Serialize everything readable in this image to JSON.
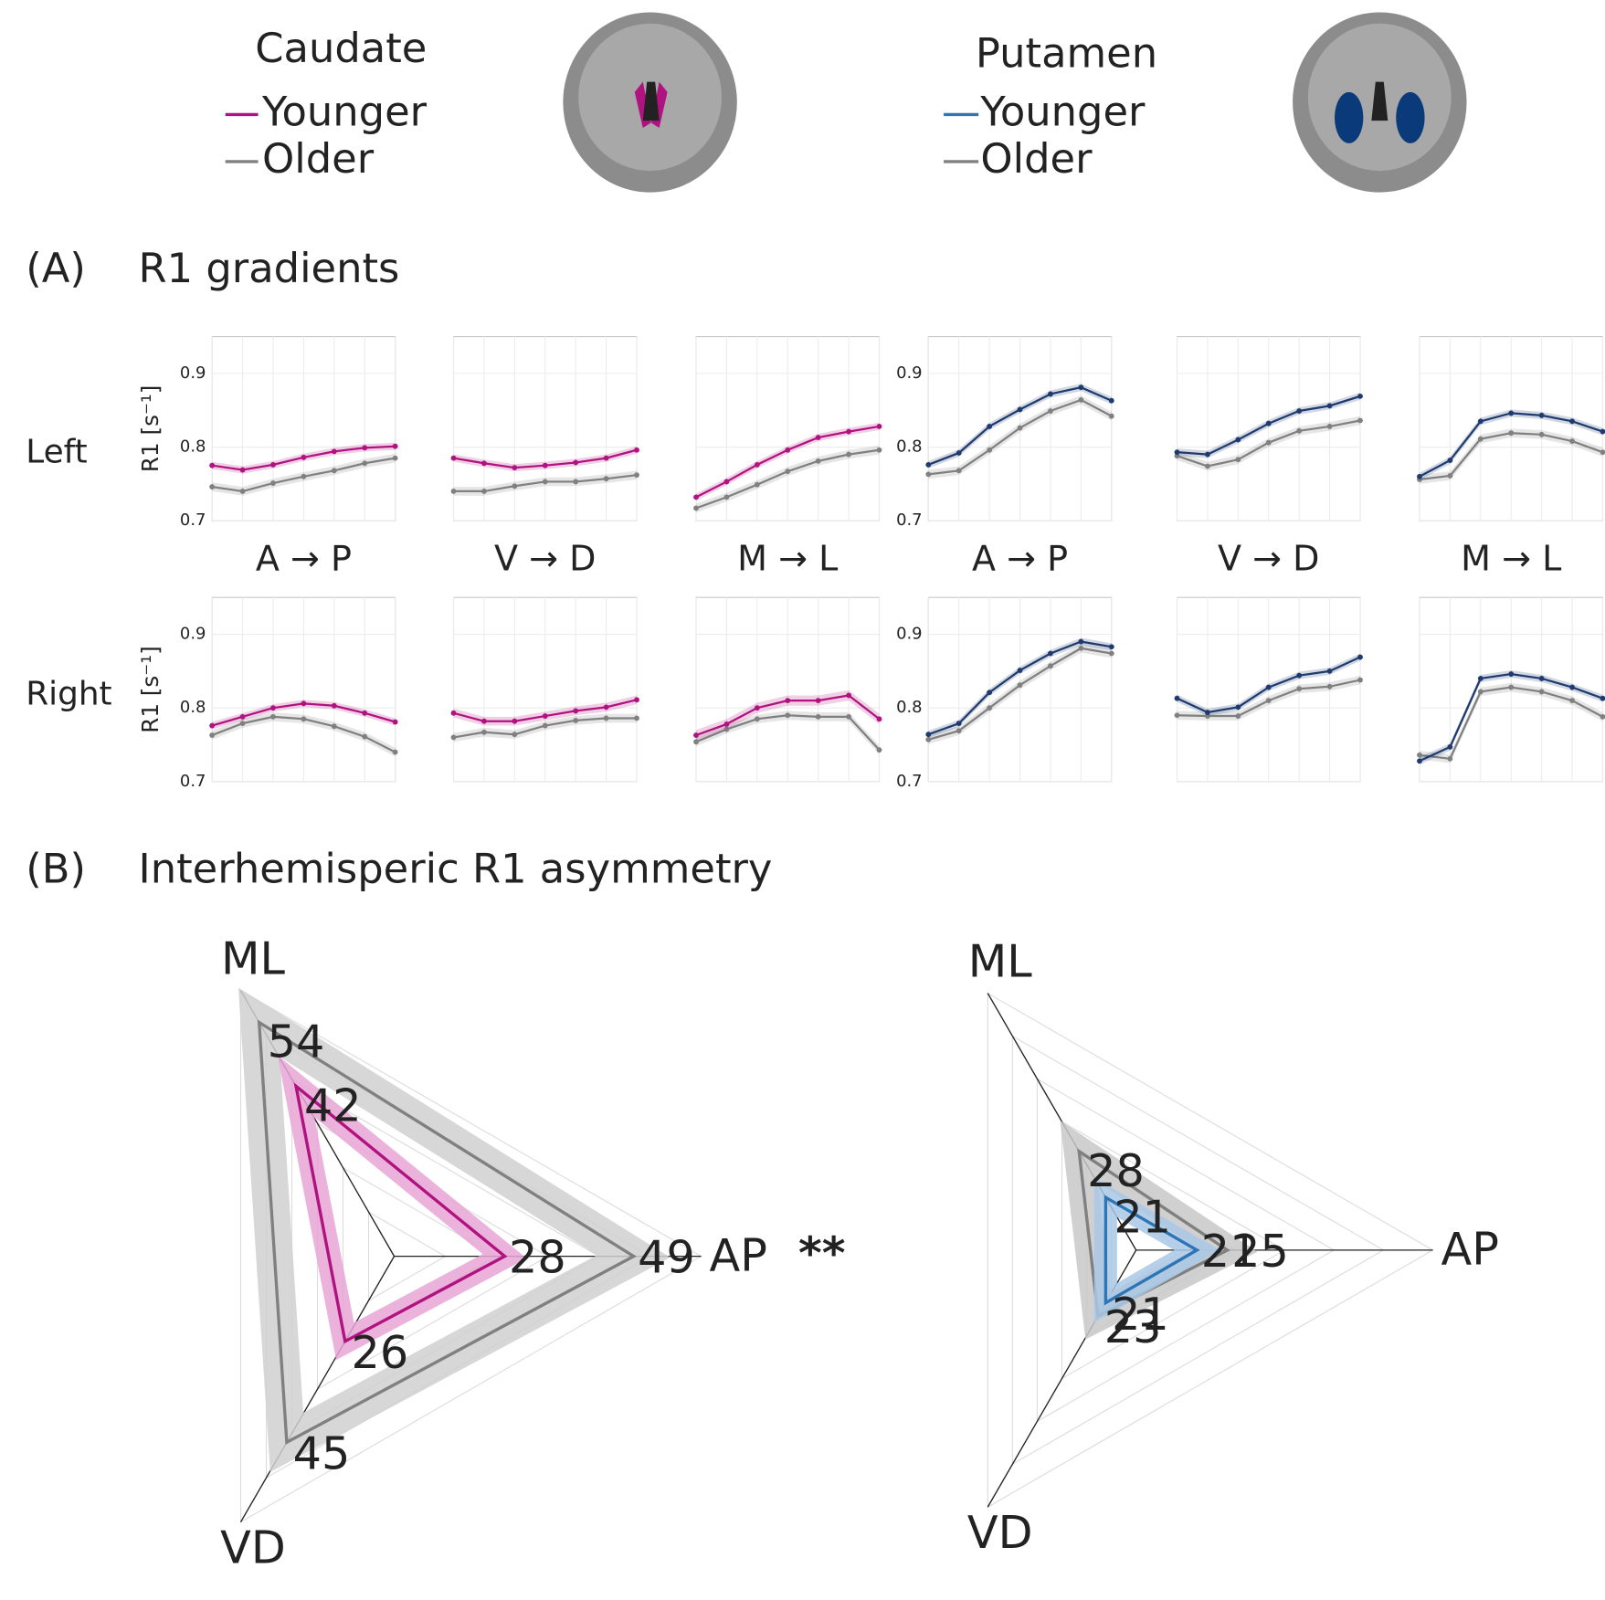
{
  "legends": [
    {
      "title": "Caudate",
      "color": "#d966c0"
    },
    {
      "title": "Putamen",
      "color": "#2f4f6f"
    }
  ],
  "panel_a": {
    "label": "(A)",
    "title": "R1 gradients"
  },
  "panel_b": {
    "label": "(B)",
    "title": "Interhemisperic R1 asymmetry"
  },
  "row_labels": [
    "Left",
    "Right"
  ],
  "chart_data": [
    {
      "type": "line",
      "xlabel": "A → P",
      "ylabel": "R1 [s⁻¹]",
      "categories": [
        null,
        null,
        null,
        null,
        null,
        null,
        null
      ],
      "ylim": [
        0.7,
        0.95
      ],
      "yticks": [
        0.7,
        0.8,
        0.9
      ],
      "series": [
        {
          "name": "Younger",
          "color": "#b0127f",
          "values": [
            0.775,
            0.769,
            0.776,
            0.786,
            0.794,
            0.799,
            0.801
          ],
          "error": 0.005
        },
        {
          "name": "Older",
          "color": "#808080",
          "values": [
            0.746,
            0.74,
            0.751,
            0.76,
            0.768,
            0.778,
            0.785
          ],
          "error": 0.006
        }
      ]
    },
    {
      "type": "line",
      "xlabel": "V → D",
      "categories": [
        null,
        null,
        null,
        null,
        null,
        null,
        null
      ],
      "ylim": [
        0.7,
        0.95
      ],
      "yticks": [
        0.7,
        0.8,
        0.9
      ],
      "series": [
        {
          "name": "Younger",
          "color": "#b0127f",
          "values": [
            0.785,
            0.778,
            0.772,
            0.775,
            0.779,
            0.785,
            0.796
          ],
          "error": 0.005
        },
        {
          "name": "Older",
          "color": "#808080",
          "values": [
            0.74,
            0.74,
            0.747,
            0.753,
            0.753,
            0.757,
            0.762
          ],
          "error": 0.006
        }
      ]
    },
    {
      "type": "line",
      "xlabel": "M → L",
      "categories": [
        null,
        null,
        null,
        null,
        null,
        null,
        null
      ],
      "ylim": [
        0.7,
        0.95
      ],
      "yticks": [
        0.7,
        0.8,
        0.9
      ],
      "series": [
        {
          "name": "Younger",
          "color": "#b0127f",
          "values": [
            0.732,
            0.753,
            0.776,
            0.796,
            0.813,
            0.821,
            0.828
          ],
          "error": 0.005
        },
        {
          "name": "Older",
          "color": "#808080",
          "values": [
            0.717,
            0.732,
            0.749,
            0.767,
            0.781,
            0.79,
            0.796
          ],
          "error": 0.006
        }
      ]
    },
    {
      "type": "line",
      "xlabel": "A → P",
      "categories": [
        null,
        null,
        null,
        null,
        null,
        null,
        null
      ],
      "ylim": [
        0.7,
        0.95
      ],
      "yticks": [
        0.7,
        0.8,
        0.9
      ],
      "series": [
        {
          "name": "Younger",
          "color": "#1f3a6e",
          "values": [
            0.776,
            0.792,
            0.828,
            0.851,
            0.872,
            0.881,
            0.863
          ],
          "error": 0.005
        },
        {
          "name": "Older",
          "color": "#808080",
          "values": [
            0.763,
            0.768,
            0.796,
            0.826,
            0.849,
            0.864,
            0.842
          ],
          "error": 0.006
        }
      ]
    },
    {
      "type": "line",
      "xlabel": "V → D",
      "categories": [
        null,
        null,
        null,
        null,
        null,
        null,
        null
      ],
      "ylim": [
        0.7,
        0.95
      ],
      "yticks": [
        0.7,
        0.8,
        0.9
      ],
      "series": [
        {
          "name": "Younger",
          "color": "#1f3a6e",
          "values": [
            0.793,
            0.79,
            0.81,
            0.832,
            0.849,
            0.856,
            0.869
          ],
          "error": 0.005
        },
        {
          "name": "Older",
          "color": "#808080",
          "values": [
            0.788,
            0.774,
            0.783,
            0.806,
            0.822,
            0.828,
            0.836
          ],
          "error": 0.006
        }
      ]
    },
    {
      "type": "line",
      "xlabel": "M → L",
      "categories": [
        null,
        null,
        null,
        null,
        null,
        null,
        null
      ],
      "ylim": [
        0.7,
        0.95
      ],
      "yticks": [
        0.7,
        0.8,
        0.9
      ],
      "series": [
        {
          "name": "Younger",
          "color": "#1f3a6e",
          "values": [
            0.76,
            0.782,
            0.835,
            0.846,
            0.843,
            0.835,
            0.821
          ],
          "error": 0.005
        },
        {
          "name": "Older",
          "color": "#808080",
          "values": [
            0.756,
            0.761,
            0.811,
            0.819,
            0.817,
            0.808,
            0.793
          ],
          "error": 0.006
        }
      ]
    },
    {
      "type": "line",
      "ylabel": "R1 [s⁻¹]",
      "categories": [
        null,
        null,
        null,
        null,
        null,
        null,
        null
      ],
      "ylim": [
        0.7,
        0.95
      ],
      "yticks": [
        0.7,
        0.8,
        0.9
      ],
      "series": [
        {
          "name": "Younger",
          "color": "#b0127f",
          "values": [
            0.776,
            0.788,
            0.8,
            0.806,
            0.803,
            0.793,
            0.781
          ],
          "error": 0.005
        },
        {
          "name": "Older",
          "color": "#808080",
          "values": [
            0.763,
            0.779,
            0.788,
            0.785,
            0.775,
            0.761,
            0.74
          ],
          "error": 0.006
        }
      ]
    },
    {
      "type": "line",
      "categories": [
        null,
        null,
        null,
        null,
        null,
        null,
        null
      ],
      "ylim": [
        0.7,
        0.95
      ],
      "yticks": [
        0.7,
        0.8,
        0.9
      ],
      "series": [
        {
          "name": "Younger",
          "color": "#b0127f",
          "values": [
            0.793,
            0.782,
            0.782,
            0.789,
            0.796,
            0.801,
            0.811
          ],
          "error": 0.006
        },
        {
          "name": "Older",
          "color": "#808080",
          "values": [
            0.76,
            0.767,
            0.764,
            0.776,
            0.783,
            0.786,
            0.786
          ],
          "error": 0.006
        }
      ]
    },
    {
      "type": "line",
      "categories": [
        null,
        null,
        null,
        null,
        null,
        null,
        null
      ],
      "ylim": [
        0.7,
        0.95
      ],
      "yticks": [
        0.7,
        0.8,
        0.9
      ],
      "series": [
        {
          "name": "Younger",
          "color": "#b0127f",
          "values": [
            0.763,
            0.778,
            0.8,
            0.81,
            0.81,
            0.817,
            0.785
          ],
          "error": 0.007
        },
        {
          "name": "Older",
          "color": "#808080",
          "values": [
            0.754,
            0.771,
            0.785,
            0.79,
            0.788,
            0.788,
            0.743
          ],
          "error": 0.006
        }
      ]
    },
    {
      "type": "line",
      "categories": [
        null,
        null,
        null,
        null,
        null,
        null,
        null
      ],
      "ylim": [
        0.7,
        0.95
      ],
      "yticks": [
        0.7,
        0.8,
        0.9
      ],
      "series": [
        {
          "name": "Younger",
          "color": "#1f3a6e",
          "values": [
            0.764,
            0.779,
            0.821,
            0.851,
            0.874,
            0.89,
            0.883
          ],
          "error": 0.005
        },
        {
          "name": "Older",
          "color": "#808080",
          "values": [
            0.757,
            0.769,
            0.8,
            0.831,
            0.857,
            0.881,
            0.874
          ],
          "error": 0.006
        }
      ]
    },
    {
      "type": "line",
      "categories": [
        null,
        null,
        null,
        null,
        null,
        null,
        null
      ],
      "ylim": [
        0.7,
        0.95
      ],
      "yticks": [
        0.7,
        0.8,
        0.9
      ],
      "series": [
        {
          "name": "Younger",
          "color": "#1f3a6e",
          "values": [
            0.813,
            0.794,
            0.801,
            0.828,
            0.844,
            0.85,
            0.869
          ],
          "error": 0.005
        },
        {
          "name": "Older",
          "color": "#808080",
          "values": [
            0.79,
            0.789,
            0.789,
            0.81,
            0.826,
            0.829,
            0.838
          ],
          "error": 0.006
        }
      ]
    },
    {
      "type": "line",
      "categories": [
        null,
        null,
        null,
        null,
        null,
        null,
        null
      ],
      "ylim": [
        0.7,
        0.95
      ],
      "yticks": [
        0.7,
        0.8,
        0.9
      ],
      "series": [
        {
          "name": "Younger",
          "color": "#1f3a6e",
          "values": [
            0.728,
            0.747,
            0.84,
            0.846,
            0.84,
            0.828,
            0.813
          ],
          "error": 0.005
        },
        {
          "name": "Older",
          "color": "#808080",
          "values": [
            0.736,
            0.731,
            0.822,
            0.828,
            0.822,
            0.81,
            0.788
          ],
          "error": 0.006
        }
      ]
    },
    {
      "type": "radar",
      "axes": [
        "ML",
        "AP",
        "VD"
      ],
      "rlim": [
        10,
        60
      ],
      "annotation": "**",
      "annotation_color": "#d966c0",
      "series": [
        {
          "name": "Younger",
          "color": "#b0127f",
          "band_color": "#e8a6d6",
          "values": [
            42,
            28,
            26
          ],
          "error": 2
        },
        {
          "name": "Older",
          "color": "#808080",
          "band_color": "#d0d0d0",
          "values": [
            54,
            49,
            45
          ],
          "error": 3
        }
      ]
    },
    {
      "type": "radar",
      "axes": [
        "ML",
        "AP",
        "VD"
      ],
      "rlim": [
        13,
        52
      ],
      "series": [
        {
          "name": "Younger",
          "color": "#2e75b6",
          "band_color": "#a9c8e6",
          "values": [
            21,
            21,
            21
          ],
          "error": 1.5
        },
        {
          "name": "Older",
          "color": "#808080",
          "band_color": "#c8c8c8",
          "values": [
            28,
            25,
            23
          ],
          "error": 2
        }
      ]
    }
  ]
}
